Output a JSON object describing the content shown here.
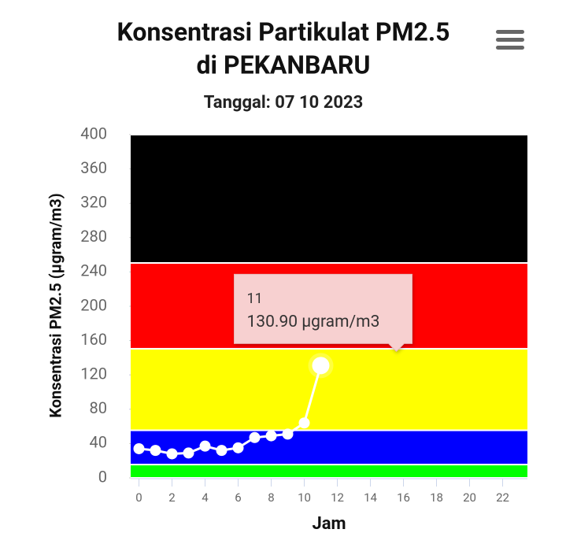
{
  "chart_data": {
    "type": "line",
    "title": [
      "Konsentrasi Partikulat PM2.5",
      "di PEKANBARU"
    ],
    "subtitle": "Tanggal: 07 10 2023",
    "x_label": "Jam",
    "y_label": "Konsentrasi PM2.5 (µgram/m3)",
    "x": [
      0,
      1,
      2,
      3,
      4,
      5,
      6,
      7,
      8,
      9,
      10,
      11
    ],
    "series": [
      {
        "color": "#ffffff",
        "values": [
          34,
          32,
          28,
          29,
          37,
          32,
          35,
          47,
          49,
          51,
          64,
          130.9
        ]
      }
    ],
    "xlim": [
      -0.5,
      23.5
    ],
    "xticks": [
      0,
      2,
      4,
      6,
      8,
      10,
      12,
      14,
      16,
      18,
      20,
      22
    ],
    "ylim": [
      0,
      400
    ],
    "yticks": [
      0,
      40,
      80,
      120,
      160,
      200,
      240,
      280,
      320,
      360,
      400
    ],
    "bands": [
      {
        "from": 0,
        "to": 15.5,
        "color": "#00ff00"
      },
      {
        "from": 15.5,
        "to": 55.4,
        "color": "#0000ff"
      },
      {
        "from": 55.5,
        "to": 150.4,
        "color": "#ffff00"
      },
      {
        "from": 150.5,
        "to": 250.4,
        "color": "#ff0000"
      },
      {
        "from": 250.5,
        "to": 400,
        "color": "#000000"
      }
    ],
    "tooltip": {
      "title": "11",
      "text": "130.90 µgram/m3",
      "index": 11
    }
  }
}
